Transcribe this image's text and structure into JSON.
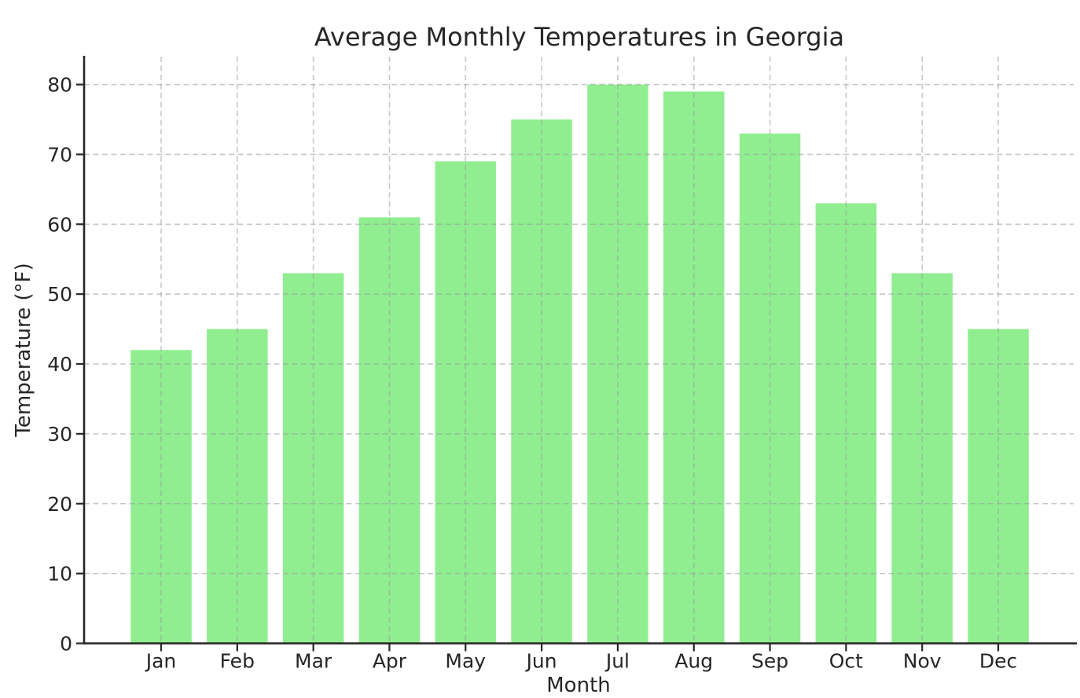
{
  "chart_data": {
    "type": "bar",
    "title": "Average Monthly Temperatures in Georgia",
    "xlabel": "Month",
    "ylabel": "Temperature (°F)",
    "categories": [
      "Jan",
      "Feb",
      "Mar",
      "Apr",
      "May",
      "Jun",
      "Jul",
      "Aug",
      "Sep",
      "Oct",
      "Nov",
      "Dec"
    ],
    "values": [
      42,
      45,
      53,
      61,
      69,
      75,
      80,
      79,
      73,
      63,
      53,
      45
    ],
    "ylim": [
      0,
      84
    ],
    "yticks": [
      0,
      10,
      20,
      30,
      40,
      50,
      60,
      70,
      80
    ],
    "grid": true,
    "grid_style": "dashed",
    "grid_over_bars": true,
    "legend": "none",
    "bar_color": "#90ee90",
    "grid_color": "#9a9a9a",
    "spine_color": "#262626",
    "text_color": "#262626",
    "background": "#ffffff"
  }
}
